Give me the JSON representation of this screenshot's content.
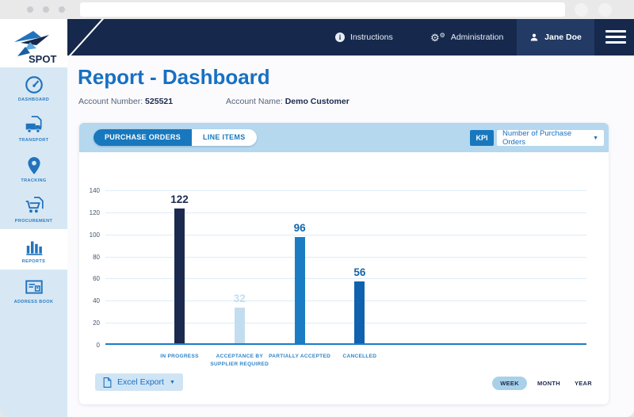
{
  "browser": {
    "url_value": ""
  },
  "header": {
    "logo_text": "SPOT",
    "nav": [
      {
        "label": "Instructions",
        "icon": "info-icon"
      },
      {
        "label": "Administration",
        "icon": "gears-icon"
      },
      {
        "label": "Jane Doe",
        "icon": "user-icon",
        "active": true
      }
    ]
  },
  "sidebar": {
    "items": [
      {
        "label": "DASHBOARD",
        "icon": "gauge-icon",
        "active": false
      },
      {
        "label": "TRANSPORT",
        "icon": "truck-icon",
        "active": false
      },
      {
        "label": "TRACKING",
        "icon": "map-pin-icon",
        "active": false
      },
      {
        "label": "PROCUREMENT",
        "icon": "cart-icon",
        "active": false
      },
      {
        "label": "REPORTS",
        "icon": "bar-chart-icon",
        "active": true
      },
      {
        "label": "ADDRESS BOOK",
        "icon": "address-card-icon",
        "active": false
      }
    ]
  },
  "page": {
    "title": "Report - Dashboard",
    "account_number_label": "Account Number:",
    "account_number": "525521",
    "account_name_label": "Account Name:",
    "account_name": "Demo Customer"
  },
  "panel": {
    "tabs": [
      {
        "label": "PURCHASE ORDERS",
        "active": true
      },
      {
        "label": "LINE ITEMS",
        "active": false
      }
    ],
    "kpi_label": "KPI",
    "kpi_value": "Number of Purchase Orders",
    "export_label": "Excel Export",
    "period_options": [
      {
        "label": "WEEK",
        "active": true
      },
      {
        "label": "MONTH",
        "active": false
      },
      {
        "label": "YEAR",
        "active": false
      }
    ]
  },
  "chart_data": {
    "type": "bar",
    "categories": [
      "IN PROGRESS",
      "ACCEPTANCE BY SUPPLIER REQUIRED",
      "PARTIALLY ACCEPTED",
      "CANCELLED"
    ],
    "values": [
      122,
      32,
      96,
      56
    ],
    "bar_colors": [
      "#1b2a4e",
      "#c3ddf0",
      "#1a7dc4",
      "#0f62ae"
    ],
    "value_label_colors": [
      "#1b2a4e",
      "#c3ddf0",
      "#1465ab",
      "#1465ab"
    ],
    "title": "",
    "xlabel": "",
    "ylabel": "",
    "ylim": [
      0,
      140
    ],
    "ytick_step": 20,
    "grid": true,
    "legend": false
  },
  "colors": {
    "brand_navy": "#16294d",
    "brand_blue": "#1878be",
    "panel_header_blue": "#b5d8ee",
    "sidebar_blue": "#d7e8f4",
    "title_blue": "#1770c2"
  }
}
